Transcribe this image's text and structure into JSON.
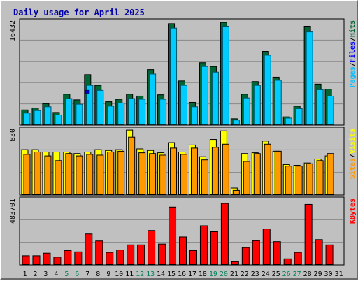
{
  "chart_data": {
    "type": "bar",
    "title": "Daily usage for April 2025",
    "categories": [
      "1",
      "2",
      "3",
      "4",
      "5",
      "6",
      "7",
      "8",
      "9",
      "10",
      "11",
      "12",
      "13",
      "14",
      "15",
      "16",
      "17",
      "18",
      "19",
      "20",
      "21",
      "22",
      "23",
      "24",
      "25",
      "26",
      "27",
      "28",
      "29",
      "30",
      "31"
    ],
    "weekend_days": [
      "5",
      "6",
      "12",
      "13",
      "19",
      "20",
      "26",
      "27"
    ],
    "panels": [
      {
        "name": "requests",
        "ymax_label": "16432",
        "ylim": [
          0,
          16432
        ],
        "right_label_parts": [
          "Pages",
          "/",
          "Files",
          "/",
          "Hits"
        ],
        "series": [
          {
            "name": "Hits",
            "color": "#006633",
            "values": [
              2300,
              2600,
              3300,
              1900,
              4800,
              3900,
              7900,
              6200,
              3600,
              4000,
              4800,
              4500,
              8700,
              4700,
              16000,
              6900,
              3500,
              9800,
              9200,
              16200,
              900,
              4800,
              6800,
              11600,
              7500,
              1200,
              2900,
              15600,
              6400,
              5600,
              0
            ]
          },
          {
            "name": "Files",
            "color": "#00ccff",
            "values": [
              1800,
              2200,
              2800,
              1500,
              4100,
              3200,
              6200,
              5400,
              2900,
              3400,
              4100,
              4000,
              8000,
              4000,
              15300,
              6200,
              2800,
              9200,
              8300,
              15600,
              700,
              4200,
              6200,
              11000,
              7000,
              1000,
              2500,
              14700,
              5500,
              4500,
              0
            ]
          },
          {
            "name": "Pages",
            "color": "#0000cc",
            "values": [
              0,
              0,
              0,
              0,
              0,
              0,
              5400,
              0,
              0,
              0,
              0,
              0,
              0,
              0,
              0,
              0,
              0,
              0,
              0,
              0,
              0,
              0,
              0,
              0,
              0,
              0,
              0,
              0,
              0,
              0,
              0
            ]
          }
        ]
      },
      {
        "name": "visits",
        "ymax_label": "830",
        "ylim": [
          0,
          830
        ],
        "right_label_parts": [
          "Sites",
          "/",
          "Visits"
        ],
        "series": [
          {
            "name": "Visits",
            "color": "#ffff00",
            "values": [
              570,
              570,
              540,
              540,
              540,
              520,
              540,
              570,
              560,
              570,
              820,
              580,
              560,
              530,
              660,
              540,
              630,
              480,
              700,
              810,
              80,
              520,
              530,
              680,
              550,
              380,
              370,
              400,
              450,
              490,
              0
            ]
          },
          {
            "name": "Sites",
            "color": "#ff9900",
            "values": [
              510,
              540,
              490,
              430,
              520,
              490,
              510,
              500,
              540,
              550,
              730,
              530,
              520,
              500,
              590,
              510,
              590,
              440,
              600,
              640,
              50,
              420,
              520,
              640,
              550,
              360,
              360,
              390,
              430,
              520,
              0
            ]
          }
        ]
      },
      {
        "name": "kbytes",
        "ymax_label": "483701",
        "ylim": [
          0,
          483701
        ],
        "right_label_parts": [
          "KBytes"
        ],
        "series": [
          {
            "name": "KBytes",
            "color": "#ff0000",
            "values": [
              63000,
              63000,
              82000,
              53000,
              102000,
              92000,
              225000,
              173000,
              88000,
              106000,
              144000,
              144000,
              251000,
              150000,
              425000,
              203000,
              102000,
              286000,
              242000,
              452000,
              19000,
              124000,
              175000,
              262000,
              168000,
              40000,
              88000,
              445000,
              183000,
              144000,
              0
            ]
          }
        ]
      }
    ],
    "colors": {
      "title": "#0000aa",
      "plot_bg": "#c0c0c0",
      "frame": "#c0c0c0",
      "weekend_text": "#00805a",
      "weekday_text": "#000000",
      "pages_label": "#00c0ff",
      "files_label": "#0000ff",
      "hits_label": "#006633",
      "sites_label": "#ff9900",
      "visits_label": "#ffff00",
      "kbytes_label": "#ff0000"
    }
  }
}
